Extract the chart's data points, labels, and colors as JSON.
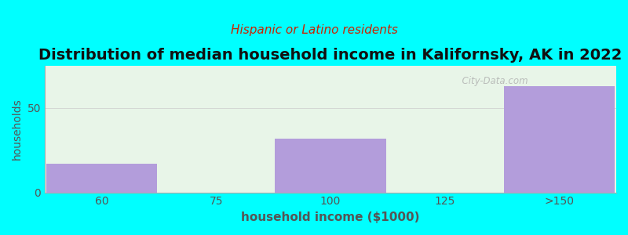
{
  "title": "Distribution of median household income in Kalifornsky, AK in 2022",
  "subtitle": "Hispanic or Latino residents",
  "xlabel": "household income ($1000)",
  "ylabel": "households",
  "background_color": "#00FFFF",
  "plot_bg_color": "#e8f5e8",
  "bar_color": "#b39ddb",
  "bar_edge_color": "#9e86c8",
  "categories": [
    "60",
    "75",
    "100",
    "125",
    ">150"
  ],
  "values": [
    17,
    0,
    32,
    0,
    63
  ],
  "ylim": [
    0,
    75
  ],
  "yticks": [
    0,
    50
  ],
  "title_fontsize": 14,
  "subtitle_fontsize": 11,
  "subtitle_color": "#cc2200",
  "axis_label_color": "#555555",
  "tick_color": "#555555",
  "watermark": "  City-Data.com",
  "bar_width": 0.97,
  "xlim": [
    -0.5,
    4.5
  ]
}
